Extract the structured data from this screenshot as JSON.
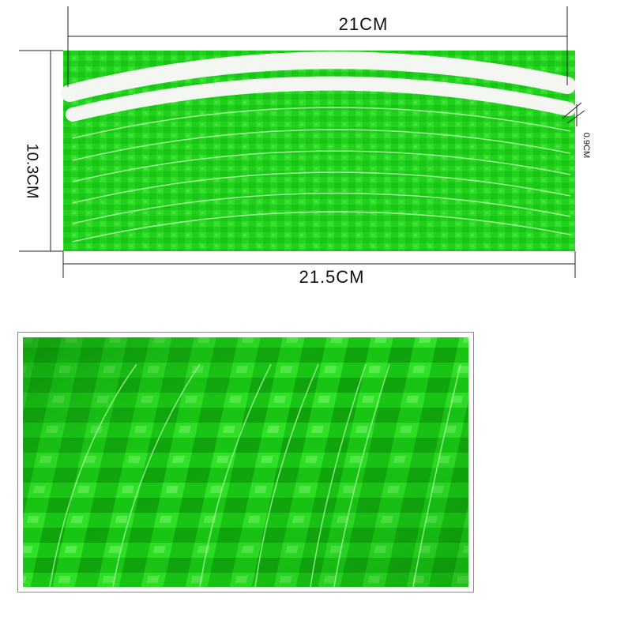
{
  "dimensions": {
    "width_label": "21CM",
    "full_width_label": "21.5CM",
    "height_label": "10.3CM",
    "strip_width_label": "0.9CM"
  },
  "colors": {
    "sheet_green": "#1fd11c",
    "sheet_green_dark": "#12a80f",
    "sheet_green_light": "#5cf04f",
    "strip_white": "#f4f6f2",
    "line_color": "#222222"
  }
}
